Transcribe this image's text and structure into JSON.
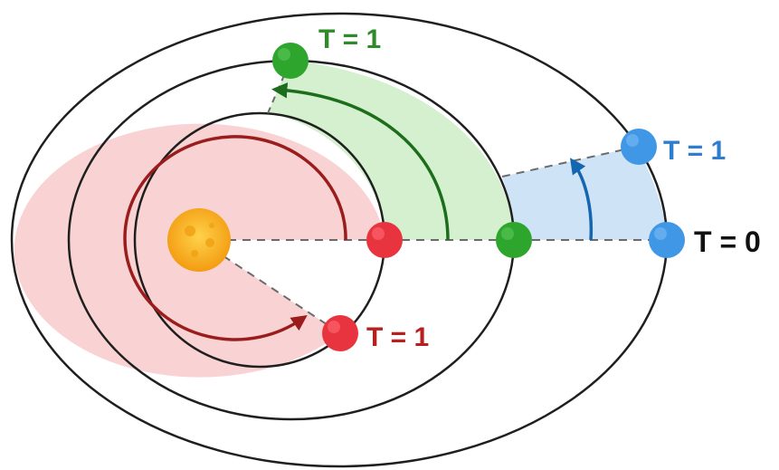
{
  "labels": {
    "t0": "T = 0",
    "t1_red": "T = 1",
    "t1_green": "T = 1",
    "t1_blue": "T = 1"
  },
  "colors": {
    "red_fill": "#f9d3d3",
    "red_planet": "#e8343f",
    "red_arrow": "#9b1c1c",
    "red_text": "#b81f1f",
    "green_fill": "#d4f0cf",
    "green_planet": "#2ea52c",
    "green_arrow": "#1c6e1c",
    "green_text": "#2f8a2a",
    "blue_fill": "#cfe3f7",
    "blue_planet": "#3f97e6",
    "blue_arrow": "#1466b0",
    "blue_text": "#2f7dd1",
    "sun": "#f7b21e",
    "orbit": "#1f1f1f",
    "dash": "#6b6b6b",
    "black_text": "#111111"
  },
  "icons": {
    "sun": "sun-icon",
    "planet": "planet-icon"
  }
}
